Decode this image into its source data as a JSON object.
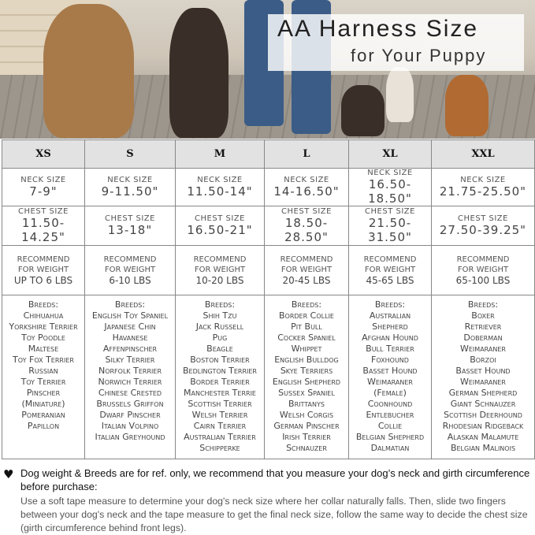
{
  "banner": {
    "title_line1": "AA Harness Size",
    "title_line2": "for Your Puppy"
  },
  "table": {
    "sizes": [
      "XS",
      "S",
      "M",
      "L",
      "XL",
      "XXL"
    ],
    "neck_label": "NECK SIZE",
    "neck": [
      "7-9\"",
      "9-11.50\"",
      "11.50-14\"",
      "14-16.50\"",
      "16.50-18.50\"",
      "21.75-25.50\""
    ],
    "chest_label": "CHEST SIZE",
    "chest": [
      "11.50-14.25\"",
      "13-18\"",
      "16.50-21\"",
      "18.50-28.50\"",
      "21.50-31.50\"",
      "27.50-39.25\""
    ],
    "weight_label1": "RECOMMEND",
    "weight_label2": "FOR WEIGHT",
    "weight": [
      "UP TO 6 LBS",
      "6-10 LBS",
      "10-20 LBS",
      "20-45 LBS",
      "45-65 LBS",
      "65-100 LBS"
    ],
    "breeds_label": "Breeds:",
    "breeds": [
      [
        "Chihuahua",
        "Yorkshire Terrier",
        "Toy Poodle",
        "Maltese",
        "Toy Fox Terrier",
        "Russian",
        "Toy Terrier",
        "Pinscher",
        "(Miniature)",
        "Pomeranian",
        "Papillon"
      ],
      [
        "English Toy Spaniel",
        "Japanese Chin",
        "Havanese",
        "Affenpinscher",
        "Silky Terrier",
        "Norfolk Terrier",
        "Norwich Terrier",
        "Chinese Crested",
        "Brussels Griffon",
        "Dwarf Pinscher",
        "Italian Volpino",
        "Italian Greyhound"
      ],
      [
        "Shih Tzu",
        "Jack Russell",
        "Pug",
        "Beagle",
        "Boston Terrier",
        "Bedlington Terrier",
        "Border Terrier",
        "Manchester Terrie",
        "Scottish Terrier",
        "Welsh Terrier",
        "Cairn Terrier",
        "Australian Terrier",
        "Schipperke"
      ],
      [
        "Border Collie",
        "Pit Bull",
        "Cocker Spaniel",
        "Whippet",
        "English Bulldog",
        "Skye Terriers",
        "English Shepherd",
        "Sussex Spaniel",
        "Brittanys",
        "Welsh Corgis",
        "German Pinscher",
        "Irish Terrier",
        "Schnauzer"
      ],
      [
        "Australian",
        "Shepherd",
        "Afghan Hound",
        "Bull Terrier",
        "Foxhound",
        "Basset Hound",
        "Weimaraner",
        "(Female)",
        "Coonhound",
        "Entlebucher",
        "Collie",
        "Belgian Shepherd",
        "Dalmatian"
      ],
      [
        "Boxer",
        "Retriever",
        "Doberman",
        "Weimaraner",
        "Borzoi",
        "Basset Hound",
        "Weimaraner",
        "German Shepherd",
        "Giant Schnauzer",
        "Scottish Deerhound",
        "Rhodesian Ridgeback",
        "Alaskan Malamute",
        "Belgian Malinois"
      ]
    ]
  },
  "note": {
    "icon": "heart-icon",
    "headline": "Dog weight & Breeds are for ref. only, we recommend that you measure your dog’s neck and girth circumference before purchase:",
    "body": "Use a soft tape measure to determine your dog's neck size where her collar naturally falls. Then, slide two fingers between your dog's neck and the tape measure to get the final neck size, follow the same way to decide the chest size (girth circumference behind front legs)."
  }
}
